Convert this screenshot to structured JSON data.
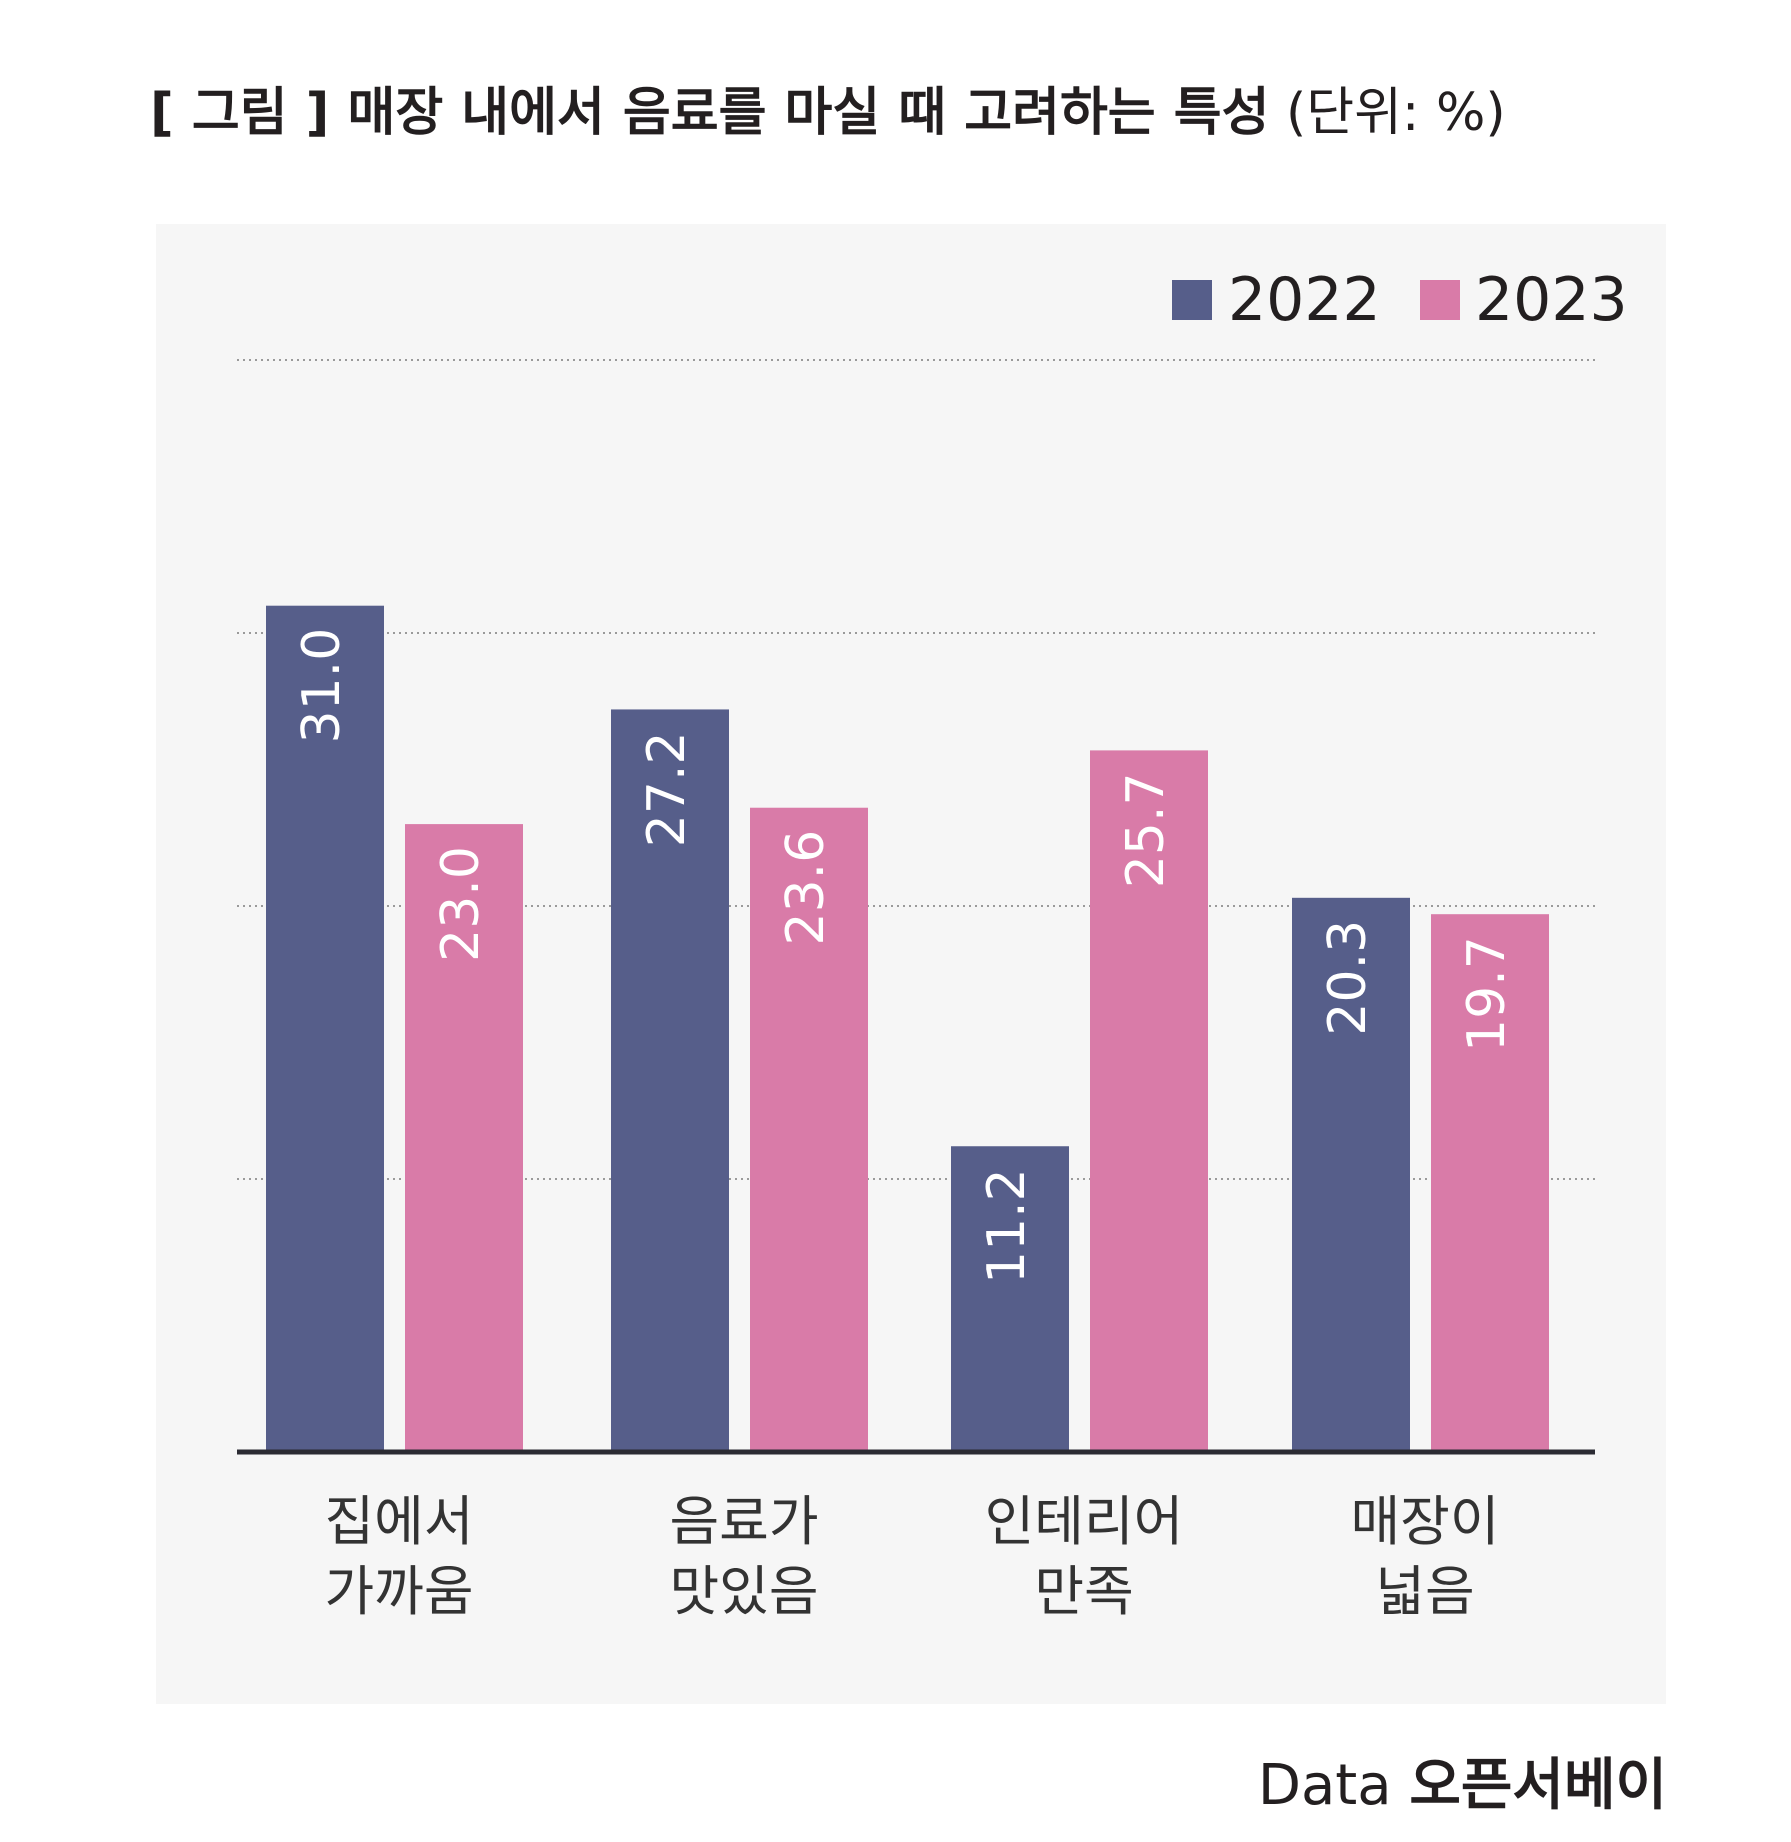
{
  "title": {
    "main": "[ 그림 ] 매장 내에서 음료를 마실 때 고려하는 특성",
    "unit": "(단위: %)"
  },
  "source": {
    "label": "Data",
    "org": "오픈서베이"
  },
  "chart_data": {
    "type": "bar",
    "categories": [
      [
        "집에서",
        "가까움"
      ],
      [
        "음료가",
        "맛있음"
      ],
      [
        "인테리어",
        "만족"
      ],
      [
        "매장이",
        "넓음"
      ]
    ],
    "series": [
      {
        "name": "2022",
        "values": [
          31.0,
          27.2,
          11.2,
          20.3
        ],
        "color": "#565e8a"
      },
      {
        "name": "2023",
        "values": [
          23.0,
          23.6,
          25.7,
          19.7
        ],
        "color": "#d97ba8"
      }
    ],
    "ylim": [
      0,
      40
    ],
    "grid": true,
    "legend": "top-right",
    "data_labels": "inside-rotated"
  }
}
